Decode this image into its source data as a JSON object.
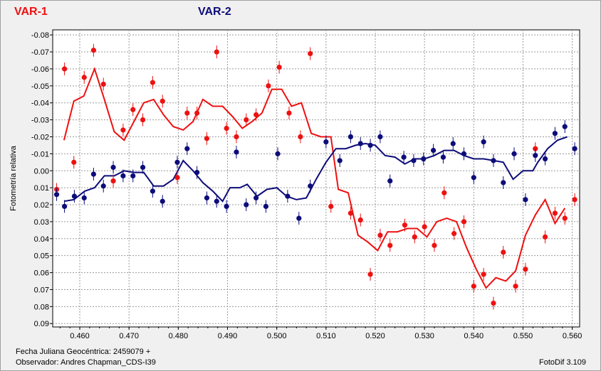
{
  "legend": {
    "var1_label": "VAR-1",
    "var2_label": "VAR-2"
  },
  "footer": {
    "julian_date": "Fecha Juliana Geocéntrica: 2459079 +",
    "observer": "Observador: Andres Chapman_CDS-I39",
    "software": "FotoDif 3.109"
  },
  "colors": {
    "var1": "#ee1111",
    "var2": "#0c0c7a",
    "grid": "#9a9a9a",
    "plot_background": "#ffffff"
  },
  "chart_data": {
    "type": "scatter",
    "ylabel": "Fotometría relativa",
    "xlim": [
      0.4545,
      0.5615
    ],
    "ylim": [
      0.092,
      -0.083
    ],
    "y_inverted": true,
    "grid": true,
    "error_bars": true,
    "x_ticks": [
      0.46,
      0.47,
      0.48,
      0.49,
      0.5,
      0.51,
      0.52,
      0.53,
      0.54,
      0.55,
      0.56
    ],
    "x_tick_labels": [
      "0.460",
      "0.470",
      "0.480",
      "0.490",
      "0.500",
      "0.510",
      "0.520",
      "0.530",
      "0.540",
      "0.550",
      "0.560"
    ],
    "y_ticks": [
      -0.08,
      -0.07,
      -0.06,
      -0.05,
      -0.04,
      -0.03,
      -0.02,
      -0.01,
      0.0,
      0.01,
      0.02,
      0.03,
      0.04,
      0.05,
      0.06,
      0.07,
      0.08,
      0.09
    ],
    "y_tick_labels": [
      "-0.08",
      "-0.07",
      "-0.06",
      "-0.05",
      "-0.04",
      "-0.03",
      "-0.02",
      "-0.01",
      "0.00",
      "0.01",
      "0.02",
      "0.03",
      "0.04",
      "0.05",
      "0.06",
      "0.07",
      "0.08",
      "0.09"
    ],
    "series": [
      {
        "name": "VAR-1",
        "color": "#ee1111",
        "points": [
          [
            0.4553,
            0.011
          ],
          [
            0.4569,
            -0.06
          ],
          [
            0.4588,
            -0.005
          ],
          [
            0.4609,
            -0.055
          ],
          [
            0.4628,
            -0.071
          ],
          [
            0.4648,
            -0.051
          ],
          [
            0.4668,
            0.006
          ],
          [
            0.4688,
            -0.024
          ],
          [
            0.4708,
            -0.036
          ],
          [
            0.4728,
            -0.03
          ],
          [
            0.4748,
            -0.052
          ],
          [
            0.4768,
            -0.041
          ],
          [
            0.4798,
            0.004
          ],
          [
            0.4818,
            -0.034
          ],
          [
            0.4838,
            -0.034
          ],
          [
            0.4858,
            -0.019
          ],
          [
            0.4878,
            -0.07
          ],
          [
            0.4898,
            -0.025
          ],
          [
            0.4918,
            -0.02
          ],
          [
            0.4938,
            -0.03
          ],
          [
            0.4958,
            -0.033
          ],
          [
            0.4983,
            -0.05
          ],
          [
            0.5005,
            -0.061
          ],
          [
            0.5025,
            -0.034
          ],
          [
            0.5048,
            -0.02
          ],
          [
            0.5068,
            -0.069
          ],
          [
            0.511,
            0.021
          ],
          [
            0.515,
            0.025
          ],
          [
            0.517,
            0.029
          ],
          [
            0.519,
            0.061
          ],
          [
            0.521,
            0.038
          ],
          [
            0.523,
            0.044
          ],
          [
            0.526,
            0.032
          ],
          [
            0.528,
            0.039
          ],
          [
            0.53,
            0.033
          ],
          [
            0.532,
            0.044
          ],
          [
            0.534,
            0.013
          ],
          [
            0.536,
            0.037
          ],
          [
            0.538,
            0.03
          ],
          [
            0.54,
            0.068
          ],
          [
            0.542,
            0.061
          ],
          [
            0.544,
            0.078
          ],
          [
            0.546,
            0.048
          ],
          [
            0.5485,
            0.068
          ],
          [
            0.5505,
            0.058
          ],
          [
            0.5525,
            -0.013
          ],
          [
            0.5545,
            0.039
          ],
          [
            0.5565,
            0.025
          ],
          [
            0.5585,
            0.028
          ],
          [
            0.5605,
            0.017
          ]
        ],
        "moving_average": [
          [
            0.4568,
            -0.018
          ],
          [
            0.4588,
            -0.041
          ],
          [
            0.4608,
            -0.044
          ],
          [
            0.463,
            -0.06
          ],
          [
            0.465,
            -0.042
          ],
          [
            0.467,
            -0.023
          ],
          [
            0.469,
            -0.018
          ],
          [
            0.471,
            -0.029
          ],
          [
            0.473,
            -0.04
          ],
          [
            0.475,
            -0.042
          ],
          [
            0.477,
            -0.033
          ],
          [
            0.479,
            -0.026
          ],
          [
            0.481,
            -0.024
          ],
          [
            0.483,
            -0.029
          ],
          [
            0.485,
            -0.042
          ],
          [
            0.487,
            -0.038
          ],
          [
            0.489,
            -0.038
          ],
          [
            0.491,
            -0.032
          ],
          [
            0.493,
            -0.025
          ],
          [
            0.495,
            -0.029
          ],
          [
            0.497,
            -0.034
          ],
          [
            0.499,
            -0.048
          ],
          [
            0.501,
            -0.048
          ],
          [
            0.503,
            -0.038
          ],
          [
            0.505,
            -0.04
          ],
          [
            0.507,
            -0.022
          ],
          [
            0.509,
            -0.02
          ],
          [
            0.511,
            -0.02
          ],
          [
            0.5125,
            0.011
          ],
          [
            0.5145,
            0.013
          ],
          [
            0.5165,
            0.038
          ],
          [
            0.5185,
            0.042
          ],
          [
            0.5205,
            0.047
          ],
          [
            0.5225,
            0.036
          ],
          [
            0.5245,
            0.036
          ],
          [
            0.5265,
            0.034
          ],
          [
            0.5285,
            0.034
          ],
          [
            0.5305,
            0.039
          ],
          [
            0.5325,
            0.03
          ],
          [
            0.5345,
            0.028
          ],
          [
            0.5365,
            0.03
          ],
          [
            0.5385,
            0.045
          ],
          [
            0.5405,
            0.058
          ],
          [
            0.5425,
            0.069
          ],
          [
            0.5445,
            0.063
          ],
          [
            0.5465,
            0.065
          ],
          [
            0.5485,
            0.059
          ],
          [
            0.5505,
            0.038
          ],
          [
            0.5525,
            0.026
          ],
          [
            0.5545,
            0.017
          ],
          [
            0.5565,
            0.031
          ],
          [
            0.5585,
            0.022
          ]
        ]
      },
      {
        "name": "VAR-2",
        "color": "#0c0c7a",
        "points": [
          [
            0.4553,
            0.014
          ],
          [
            0.4569,
            0.021
          ],
          [
            0.4589,
            0.015
          ],
          [
            0.4609,
            0.016
          ],
          [
            0.4628,
            0.002
          ],
          [
            0.4648,
            0.009
          ],
          [
            0.4668,
            -0.002
          ],
          [
            0.4688,
            0.003
          ],
          [
            0.4708,
            0.003
          ],
          [
            0.4728,
            -0.002
          ],
          [
            0.4748,
            0.012
          ],
          [
            0.4768,
            0.018
          ],
          [
            0.4798,
            -0.005
          ],
          [
            0.4818,
            -0.013
          ],
          [
            0.4838,
            0.001
          ],
          [
            0.4858,
            0.016
          ],
          [
            0.4878,
            0.018
          ],
          [
            0.4898,
            0.021
          ],
          [
            0.4918,
            -0.011
          ],
          [
            0.4938,
            0.02
          ],
          [
            0.4958,
            0.016
          ],
          [
            0.4978,
            0.021
          ],
          [
            0.5002,
            -0.01
          ],
          [
            0.5022,
            0.015
          ],
          [
            0.5045,
            0.028
          ],
          [
            0.5068,
            0.009
          ],
          [
            0.51,
            -0.017
          ],
          [
            0.5128,
            -0.006
          ],
          [
            0.515,
            -0.02
          ],
          [
            0.517,
            -0.016
          ],
          [
            0.519,
            -0.015
          ],
          [
            0.521,
            -0.02
          ],
          [
            0.523,
            0.006
          ],
          [
            0.5258,
            -0.008
          ],
          [
            0.5278,
            -0.006
          ],
          [
            0.5298,
            -0.007
          ],
          [
            0.5318,
            -0.012
          ],
          [
            0.5338,
            -0.008
          ],
          [
            0.5358,
            -0.016
          ],
          [
            0.538,
            -0.01
          ],
          [
            0.54,
            0.004
          ],
          [
            0.542,
            -0.017
          ],
          [
            0.544,
            -0.006
          ],
          [
            0.546,
            0.007
          ],
          [
            0.5482,
            -0.01
          ],
          [
            0.5505,
            0.017
          ],
          [
            0.5525,
            -0.009
          ],
          [
            0.5545,
            -0.007
          ],
          [
            0.5565,
            -0.022
          ],
          [
            0.5585,
            -0.026
          ],
          [
            0.5605,
            -0.013
          ]
        ],
        "moving_average": [
          [
            0.4568,
            0.018
          ],
          [
            0.4588,
            0.017
          ],
          [
            0.461,
            0.012
          ],
          [
            0.463,
            0.01
          ],
          [
            0.465,
            0.003
          ],
          [
            0.467,
            0.003
          ],
          [
            0.469,
            0.0
          ],
          [
            0.471,
            0.001
          ],
          [
            0.473,
            0.001
          ],
          [
            0.475,
            0.009
          ],
          [
            0.477,
            0.009
          ],
          [
            0.479,
            0.005
          ],
          [
            0.481,
            -0.006
          ],
          [
            0.483,
            0.0
          ],
          [
            0.485,
            0.007
          ],
          [
            0.487,
            0.012
          ],
          [
            0.489,
            0.018
          ],
          [
            0.4905,
            0.01
          ],
          [
            0.4925,
            0.01
          ],
          [
            0.494,
            0.008
          ],
          [
            0.496,
            0.015
          ],
          [
            0.498,
            0.011
          ],
          [
            0.5,
            0.01
          ],
          [
            0.502,
            0.015
          ],
          [
            0.504,
            0.017
          ],
          [
            0.506,
            0.016
          ],
          [
            0.508,
            0.005
          ],
          [
            0.51,
            -0.005
          ],
          [
            0.512,
            -0.013
          ],
          [
            0.514,
            -0.013
          ],
          [
            0.516,
            -0.015
          ],
          [
            0.518,
            -0.016
          ],
          [
            0.52,
            -0.015
          ],
          [
            0.522,
            -0.009
          ],
          [
            0.524,
            -0.008
          ],
          [
            0.526,
            -0.004
          ],
          [
            0.528,
            -0.007
          ],
          [
            0.53,
            -0.007
          ],
          [
            0.532,
            -0.009
          ],
          [
            0.534,
            -0.012
          ],
          [
            0.536,
            -0.012
          ],
          [
            0.538,
            -0.009
          ],
          [
            0.54,
            -0.007
          ],
          [
            0.542,
            -0.007
          ],
          [
            0.544,
            -0.006
          ],
          [
            0.546,
            -0.005
          ],
          [
            0.548,
            0.005
          ],
          [
            0.55,
            0.0
          ],
          [
            0.552,
            0.0
          ],
          [
            0.553,
            -0.005
          ],
          [
            0.555,
            -0.013
          ],
          [
            0.557,
            -0.018
          ],
          [
            0.559,
            -0.02
          ]
        ]
      }
    ]
  }
}
